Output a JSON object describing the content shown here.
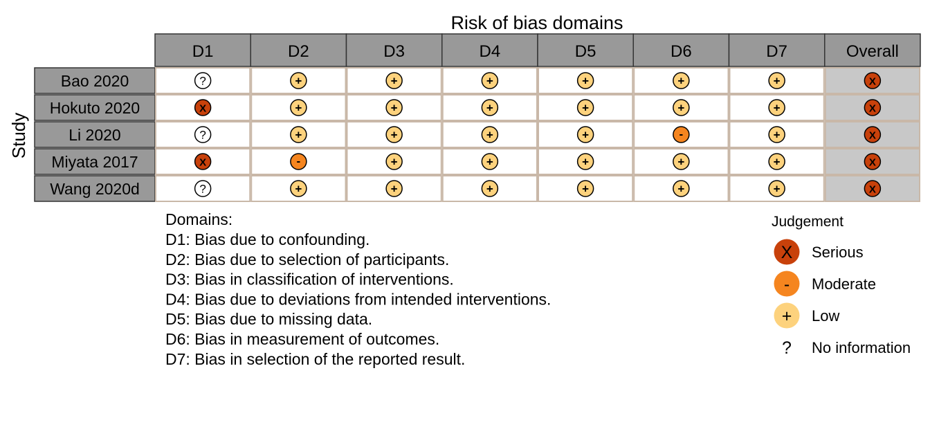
{
  "chart_data": {
    "type": "table",
    "title": "Risk of bias domains",
    "ylabel": "Study",
    "columns": [
      "D1",
      "D2",
      "D3",
      "D4",
      "D5",
      "D6",
      "D7",
      "Overall"
    ],
    "studies": [
      "Bao 2020",
      "Hokuto 2020",
      "Li 2020",
      "Miyata 2017",
      "Wang 2020d"
    ],
    "judgements": [
      [
        "no_information",
        "low",
        "low",
        "low",
        "low",
        "low",
        "low",
        "serious"
      ],
      [
        "serious",
        "low",
        "low",
        "low",
        "low",
        "low",
        "low",
        "serious"
      ],
      [
        "no_information",
        "low",
        "low",
        "low",
        "low",
        "moderate",
        "low",
        "serious"
      ],
      [
        "serious",
        "moderate",
        "low",
        "low",
        "low",
        "low",
        "low",
        "serious"
      ],
      [
        "no_information",
        "low",
        "low",
        "low",
        "low",
        "low",
        "low",
        "serious"
      ]
    ],
    "domains_heading": "Domains:",
    "domains": [
      "D1: Bias due to confounding.",
      "D2: Bias due to selection of participants.",
      "D3: Bias in classification of interventions.",
      "D4: Bias due to deviations from intended interventions.",
      "D5: Bias due to missing data.",
      "D6: Bias in measurement of outcomes.",
      "D7: Bias in selection of the reported result."
    ],
    "legend": {
      "title": "Judgement",
      "placement": "bottom-right",
      "items": [
        {
          "key": "serious",
          "symbol": "X",
          "label": "Serious"
        },
        {
          "key": "moderate",
          "symbol": "-",
          "label": "Moderate"
        },
        {
          "key": "low",
          "symbol": "+",
          "label": "Low"
        },
        {
          "key": "no_information",
          "symbol": "?",
          "label": "No information"
        }
      ]
    },
    "symbols": {
      "serious": "X",
      "moderate": "-",
      "low": "+",
      "no_information": "?"
    },
    "colors": {
      "serious": "#c8410b",
      "moderate": "#f5851f",
      "low": "#fdd27d",
      "no_information": "#ffffff",
      "header_fill": "#999999",
      "overall_fill": "#c8c8c8",
      "cell_border": "#c9b8a8"
    }
  }
}
